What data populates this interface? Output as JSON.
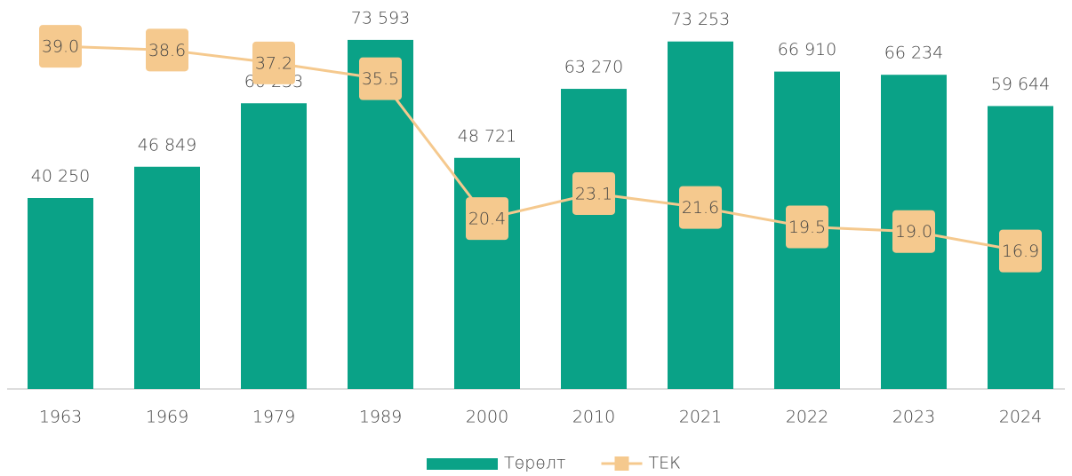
{
  "chart_data": {
    "type": "bar",
    "categories": [
      "1963",
      "1969",
      "1979",
      "1989",
      "2000",
      "2010",
      "2021",
      "2022",
      "2023",
      "2024"
    ],
    "series": [
      {
        "name": "Төрөлт",
        "type": "bar",
        "color": "#0aa287",
        "values": [
          40250,
          46849,
          60233,
          73593,
          48721,
          63270,
          73253,
          66910,
          66234,
          59644
        ],
        "value_labels": [
          "40 250",
          "46 849",
          "60 233",
          "73 593",
          "48 721",
          "63 270",
          "73 253",
          "66 910",
          "66 234",
          "59 644"
        ]
      },
      {
        "name": "ТЕК",
        "type": "line",
        "axis": "y2",
        "color": "#f5c98e",
        "values": [
          39.0,
          38.6,
          37.2,
          35.5,
          20.4,
          23.1,
          21.6,
          19.5,
          19.0,
          16.9
        ],
        "value_labels": [
          "39.0",
          "38.6",
          "37.2",
          "35.5",
          "20.4",
          "23.1",
          "21.6",
          "19.5",
          "19.0",
          "16.9"
        ]
      }
    ],
    "ylim": [
      0,
      82000
    ],
    "y2lim": [
      2,
      44
    ],
    "legend": "bottom"
  }
}
